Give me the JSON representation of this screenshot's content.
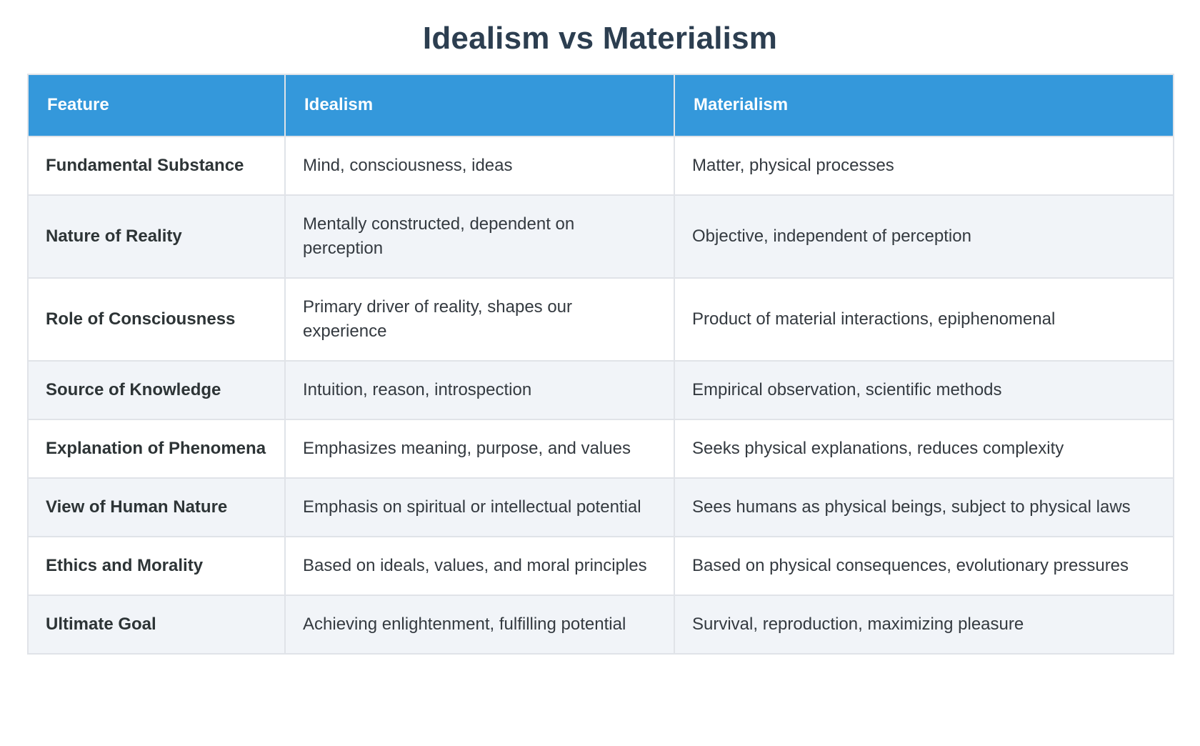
{
  "page": {
    "title": "Idealism vs Materialism"
  },
  "colors": {
    "header_bg": "#3498db",
    "header_text": "#ffffff",
    "title_text": "#2c3e50",
    "body_text": "#343a40",
    "alt_row_bg": "#f1f4f8",
    "border": "#e0e3e8"
  },
  "table": {
    "columns": [
      "Feature",
      "Idealism",
      "Materialism"
    ],
    "rows": [
      {
        "feature": "Fundamental Substance",
        "idealism": "Mind, consciousness, ideas",
        "materialism": "Matter, physical processes"
      },
      {
        "feature": "Nature of Reality",
        "idealism": "Mentally constructed, dependent on perception",
        "materialism": "Objective, independent of perception"
      },
      {
        "feature": "Role of Consciousness",
        "idealism": "Primary driver of reality, shapes our experience",
        "materialism": "Product of material interactions, epiphenomenal"
      },
      {
        "feature": "Source of Knowledge",
        "idealism": "Intuition, reason, introspection",
        "materialism": "Empirical observation, scientific methods"
      },
      {
        "feature": "Explanation of Phenomena",
        "idealism": "Emphasizes meaning, purpose, and values",
        "materialism": "Seeks physical explanations, reduces complexity"
      },
      {
        "feature": "View of Human Nature",
        "idealism": "Emphasis on spiritual or intellectual potential",
        "materialism": "Sees humans as physical beings, subject to physical laws"
      },
      {
        "feature": "Ethics and Morality",
        "idealism": "Based on ideals, values, and moral principles",
        "materialism": "Based on physical consequences, evolutionary pressures"
      },
      {
        "feature": "Ultimate Goal",
        "idealism": "Achieving enlightenment, fulfilling potential",
        "materialism": "Survival, reproduction, maximizing pleasure"
      }
    ]
  }
}
